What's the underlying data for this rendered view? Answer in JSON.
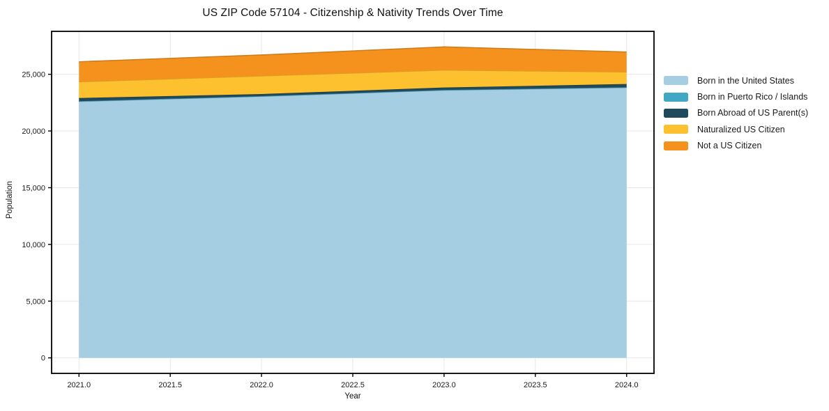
{
  "chart_data": {
    "type": "area",
    "stacked": true,
    "title": "US ZIP Code 57104 - Citizenship & Nativity Trends Over Time",
    "xlabel": "Year",
    "ylabel": "Population",
    "x": [
      2021,
      2022,
      2023,
      2024
    ],
    "series": [
      {
        "name": "Born in the United States",
        "color": "#A6CEE3",
        "values": [
          22600,
          23050,
          23590,
          23820
        ]
      },
      {
        "name": "Born in Puerto Rico / Islands",
        "color": "#41A7C4",
        "values": [
          30,
          25,
          30,
          35
        ]
      },
      {
        "name": "Born Abroad of US Parent(s)",
        "color": "#20495C",
        "values": [
          280,
          185,
          215,
          290
        ]
      },
      {
        "name": "Naturalized US Citizen",
        "color": "#FDC02E",
        "values": [
          1430,
          1595,
          1535,
          1060
        ]
      },
      {
        "name": "Not a US Citizen",
        "color": "#F5921E",
        "values": [
          1760,
          1845,
          2045,
          1760
        ]
      }
    ],
    "xlim": [
      2020.85,
      2024.15
    ],
    "ylim": [
      -1370,
      28785
    ],
    "xticks": [
      2021.0,
      2021.5,
      2022.0,
      2022.5,
      2023.0,
      2023.5,
      2024.0
    ],
    "xtick_labels": [
      "2021.0",
      "2021.5",
      "2022.0",
      "2022.5",
      "2023.0",
      "2023.5",
      "2024.0"
    ],
    "yticks": [
      0,
      5000,
      10000,
      15000,
      20000,
      25000
    ],
    "ytick_labels": [
      "0",
      "5,000",
      "10,000",
      "15,000",
      "20,000",
      "25,000"
    ],
    "grid": true,
    "legend_position": "right"
  }
}
